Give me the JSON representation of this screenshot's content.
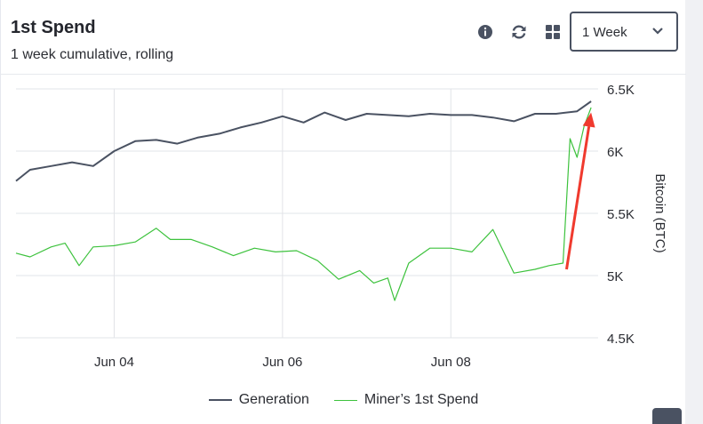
{
  "header": {
    "title": "1st Spend",
    "subtitle": "1 week cumulative, rolling",
    "period_select": {
      "value": "1 Week"
    },
    "icons": [
      "info-icon",
      "refresh-icon",
      "grid-icon",
      "chevron-down-icon"
    ]
  },
  "colors": {
    "generation": "#4a5262",
    "spend": "#3dc23d",
    "arrow": "#f03a2e",
    "grid": "#e2e4e8"
  },
  "chart_data": {
    "type": "line",
    "ylabel": "Bitcoin (BTC)",
    "ylim": [
      4500,
      6500
    ],
    "yticks": [
      4500,
      5000,
      5500,
      6000,
      6500
    ],
    "ytick_labels": [
      "4.5K",
      "5K",
      "5.5K",
      "6K",
      "6.5K"
    ],
    "xlim": [
      "2024-06-02T20:00",
      "2024-06-09T18:00"
    ],
    "xticks": [
      "2024-06-04",
      "2024-06-06",
      "2024-06-08"
    ],
    "xtick_labels": [
      "Jun 04",
      "Jun 06",
      "Jun 08"
    ],
    "grid": true,
    "legend_position": "bottom-center",
    "series": [
      {
        "name": "Generation",
        "x": [
          "2024-06-02T20:00",
          "2024-06-03T00:00",
          "2024-06-03T06:00",
          "2024-06-03T12:00",
          "2024-06-03T18:00",
          "2024-06-04T00:00",
          "2024-06-04T06:00",
          "2024-06-04T12:00",
          "2024-06-04T18:00",
          "2024-06-05T00:00",
          "2024-06-05T06:00",
          "2024-06-05T12:00",
          "2024-06-05T18:00",
          "2024-06-06T00:00",
          "2024-06-06T06:00",
          "2024-06-06T12:00",
          "2024-06-06T18:00",
          "2024-06-07T00:00",
          "2024-06-07T06:00",
          "2024-06-07T12:00",
          "2024-06-07T18:00",
          "2024-06-08T00:00",
          "2024-06-08T06:00",
          "2024-06-08T12:00",
          "2024-06-08T18:00",
          "2024-06-09T00:00",
          "2024-06-09T06:00",
          "2024-06-09T12:00",
          "2024-06-09T16:00"
        ],
        "values": [
          5760,
          5850,
          5880,
          5910,
          5880,
          6000,
          6080,
          6090,
          6060,
          6110,
          6140,
          6190,
          6230,
          6280,
          6230,
          6310,
          6250,
          6300,
          6290,
          6280,
          6300,
          6290,
          6290,
          6270,
          6240,
          6300,
          6300,
          6320,
          6400
        ]
      },
      {
        "name": "Miner’s 1st Spend",
        "x": [
          "2024-06-02T20:00",
          "2024-06-03T00:00",
          "2024-06-03T06:00",
          "2024-06-03T10:00",
          "2024-06-03T14:00",
          "2024-06-03T18:00",
          "2024-06-04T00:00",
          "2024-06-04T06:00",
          "2024-06-04T12:00",
          "2024-06-04T16:00",
          "2024-06-04T22:00",
          "2024-06-05T04:00",
          "2024-06-05T10:00",
          "2024-06-05T16:00",
          "2024-06-05T22:00",
          "2024-06-06T04:00",
          "2024-06-06T10:00",
          "2024-06-06T16:00",
          "2024-06-06T22:00",
          "2024-06-07T02:00",
          "2024-06-07T06:00",
          "2024-06-07T08:00",
          "2024-06-07T12:00",
          "2024-06-07T18:00",
          "2024-06-08T00:00",
          "2024-06-08T06:00",
          "2024-06-08T12:00",
          "2024-06-08T18:00",
          "2024-06-09T00:00",
          "2024-06-09T04:00",
          "2024-06-09T08:00",
          "2024-06-09T10:00",
          "2024-06-09T12:00",
          "2024-06-09T14:00",
          "2024-06-09T16:00"
        ],
        "values": [
          5180,
          5150,
          5230,
          5260,
          5080,
          5230,
          5240,
          5270,
          5380,
          5290,
          5290,
          5230,
          5160,
          5220,
          5190,
          5200,
          5120,
          4970,
          5040,
          4940,
          4980,
          4800,
          5100,
          5220,
          5220,
          5190,
          5370,
          5020,
          5050,
          5080,
          5100,
          6100,
          5950,
          6200,
          6350
        ]
      }
    ],
    "annotations": [
      {
        "type": "arrow",
        "from": [
          "2024-06-09T09:00",
          5050
        ],
        "to": [
          "2024-06-09T16:00",
          6310
        ]
      }
    ]
  }
}
